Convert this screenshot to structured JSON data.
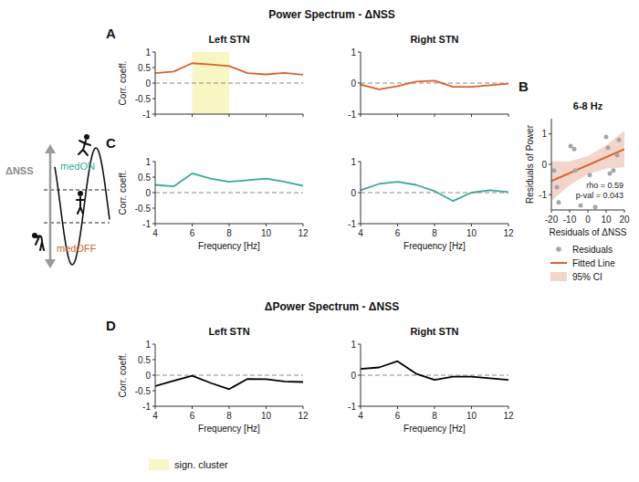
{
  "schematic": {
    "axis_label": "ΔNSS",
    "top_label": "medON",
    "bottom_label": "medOFF",
    "top_color": "#3aa999",
    "bottom_color": "#d9622b"
  },
  "chart_data": [
    {
      "type": "line",
      "panel": "A",
      "group_title": "Power Spectrum - ΔNSS",
      "title": "Left STN",
      "ylabel": "Corr. coeff.",
      "x": [
        4,
        5,
        6,
        7,
        8,
        9,
        10,
        11,
        12
      ],
      "series": [
        {
          "color": "#d9622b",
          "values": [
            0.32,
            0.37,
            0.64,
            0.6,
            0.55,
            0.32,
            0.28,
            0.33,
            0.27
          ]
        }
      ],
      "xlim": [
        4,
        12
      ],
      "ylim": [
        -1,
        1
      ],
      "xticks": [
        4,
        6,
        8,
        10,
        12
      ],
      "yticks": [
        -1,
        -0.5,
        0,
        0.5,
        1
      ],
      "hline": 0,
      "tick_labels": "y",
      "highlight": {
        "x": [
          6,
          8
        ],
        "label": "sign. cluster",
        "color": "#f8f6c2"
      }
    },
    {
      "type": "line",
      "title": "Right STN",
      "x": [
        4,
        5,
        6,
        7,
        8,
        9,
        10,
        11,
        12
      ],
      "series": [
        {
          "color": "#d9622b",
          "values": [
            -0.05,
            -0.2,
            -0.1,
            0.05,
            0.08,
            -0.12,
            -0.12,
            -0.07,
            -0.02
          ]
        }
      ],
      "xlim": [
        4,
        12
      ],
      "ylim": [
        -1,
        1
      ],
      "xticks": [
        4,
        6,
        8,
        10,
        12
      ],
      "yticks": [
        -1,
        0,
        1
      ],
      "hline": 0,
      "tick_labels": "y"
    },
    {
      "type": "scatter",
      "panel": "B",
      "title": "6-8 Hz",
      "xlabel": "Residuals of ΔNSS",
      "ylabel": "Residuals of Power",
      "xlim": [
        -20,
        20
      ],
      "ylim": [
        -1.5,
        1.5
      ],
      "xticks": [
        -20,
        -10,
        0,
        10,
        20
      ],
      "yticks": [
        -1,
        0,
        1
      ],
      "legend": "bottom",
      "annotations": [
        "rho = 0.59",
        "p-val = 0.043"
      ],
      "series": [
        {
          "name": "Residuals",
          "type": "scatter",
          "marker": "circle",
          "color": "#a6a6a6",
          "x": [
            -18.5,
            -17,
            -16,
            -9.5,
            -7.5,
            -7,
            -4,
            1,
            4,
            10,
            11,
            12,
            14,
            16,
            17
          ],
          "values": [
            -0.2,
            -0.75,
            -1.25,
            0.6,
            0.5,
            -0.2,
            -1.35,
            -0.35,
            -1.4,
            0.9,
            0.55,
            -0.3,
            -0.2,
            0.3,
            0.8
          ]
        },
        {
          "name": "Fitted Line",
          "type": "line",
          "color": "#d9622b",
          "x": [
            -20,
            20
          ],
          "values": [
            -0.55,
            0.5
          ]
        },
        {
          "name": "95% CI",
          "type": "area",
          "color": "#f3d6cb",
          "x": [
            -20,
            -10,
            0,
            10,
            20
          ],
          "lower": [
            -1.2,
            -0.68,
            -0.32,
            -0.14,
            -0.1
          ],
          "upper": [
            0.1,
            0.1,
            0.27,
            0.62,
            1.1
          ]
        }
      ]
    },
    {
      "type": "line",
      "panel": "C",
      "ylabel": "Corr. coeff.",
      "xlabel": "Frequency [Hz]",
      "x": [
        4,
        5,
        6,
        7,
        8,
        9,
        10,
        11,
        12
      ],
      "series": [
        {
          "color": "#3aa999",
          "values": [
            0.25,
            0.2,
            0.62,
            0.45,
            0.35,
            0.4,
            0.45,
            0.35,
            0.22
          ]
        }
      ],
      "xlim": [
        4,
        12
      ],
      "ylim": [
        -1,
        1
      ],
      "xticks": [
        4,
        6,
        8,
        10,
        12
      ],
      "yticks": [
        -1,
        -0.5,
        0,
        0.5,
        1
      ],
      "hline": 0
    },
    {
      "type": "line",
      "xlabel": "Frequency [Hz]",
      "x": [
        4,
        5,
        6,
        7,
        8,
        9,
        10,
        11,
        12
      ],
      "series": [
        {
          "color": "#3aa999",
          "values": [
            0.08,
            0.28,
            0.35,
            0.25,
            0.05,
            -0.27,
            0,
            0.08,
            0.02
          ]
        }
      ],
      "xlim": [
        4,
        12
      ],
      "ylim": [
        -1,
        1
      ],
      "xticks": [
        4,
        6,
        8,
        10,
        12
      ],
      "yticks": [
        -1,
        0,
        1
      ],
      "hline": 0
    },
    {
      "type": "line",
      "panel": "D",
      "group_title": "ΔPower Spectrum - ΔNSS",
      "title": "Left STN",
      "ylabel": "Corr. coeff.",
      "xlabel": "Frequency [Hz]",
      "x": [
        4,
        5,
        6,
        7,
        8,
        9,
        10,
        11,
        12
      ],
      "series": [
        {
          "color": "#000000",
          "values": [
            -0.35,
            -0.18,
            -0.02,
            -0.25,
            -0.45,
            -0.12,
            -0.13,
            -0.2,
            -0.22
          ]
        }
      ],
      "xlim": [
        4,
        12
      ],
      "ylim": [
        -1,
        1
      ],
      "xticks": [
        4,
        6,
        8,
        10,
        12
      ],
      "yticks": [
        -1,
        -0.5,
        0,
        0.5,
        1
      ],
      "hline": 0
    },
    {
      "type": "line",
      "title": "Right STN",
      "xlabel": "Frequency [Hz]",
      "x": [
        4,
        5,
        6,
        7,
        8,
        9,
        10,
        11,
        12
      ],
      "series": [
        {
          "color": "#000000",
          "values": [
            0.2,
            0.25,
            0.45,
            0.05,
            -0.15,
            -0.05,
            -0.05,
            -0.1,
            -0.15
          ]
        }
      ],
      "xlim": [
        4,
        12
      ],
      "ylim": [
        -1,
        1
      ],
      "xticks": [
        4,
        6,
        8,
        10,
        12
      ],
      "yticks": [
        -1,
        0,
        1
      ],
      "hline": 0
    }
  ]
}
